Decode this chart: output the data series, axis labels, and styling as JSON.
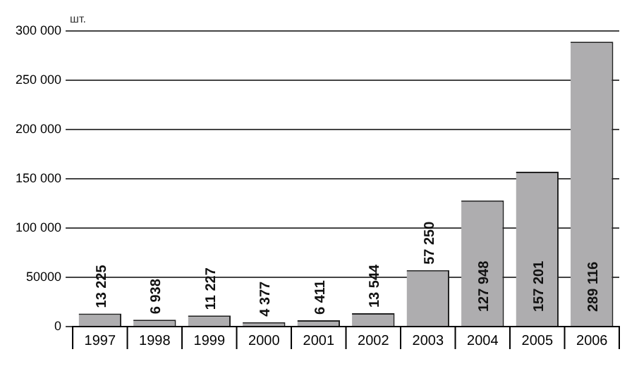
{
  "chart_data": {
    "type": "bar",
    "ylabel": "шт.",
    "categories": [
      "1997",
      "1998",
      "1999",
      "2000",
      "2001",
      "2002",
      "2003",
      "2004",
      "2005",
      "2006"
    ],
    "values": [
      13225,
      6938,
      11227,
      4377,
      6411,
      13544,
      57250,
      127948,
      157201,
      289116
    ],
    "value_labels": [
      "13 225",
      "6 938",
      "11 227",
      "4 377",
      "6 411",
      "13 544",
      "57 250",
      "127 948",
      "157 201",
      "289 116"
    ],
    "color": "#aeadaf",
    "ylim": [
      0,
      300000
    ],
    "yticks": [
      0,
      {
        "value": 50000,
        "label": "50000"
      },
      {
        "value": 100000,
        "label": "100 000"
      },
      {
        "value": 150000,
        "label": "150 000"
      },
      {
        "value": 200000,
        "label": "200 000"
      },
      {
        "value": 250000,
        "label": "250 000"
      },
      {
        "value": 300000,
        "label": "300 000"
      }
    ],
    "grid": "y",
    "legend": false
  }
}
